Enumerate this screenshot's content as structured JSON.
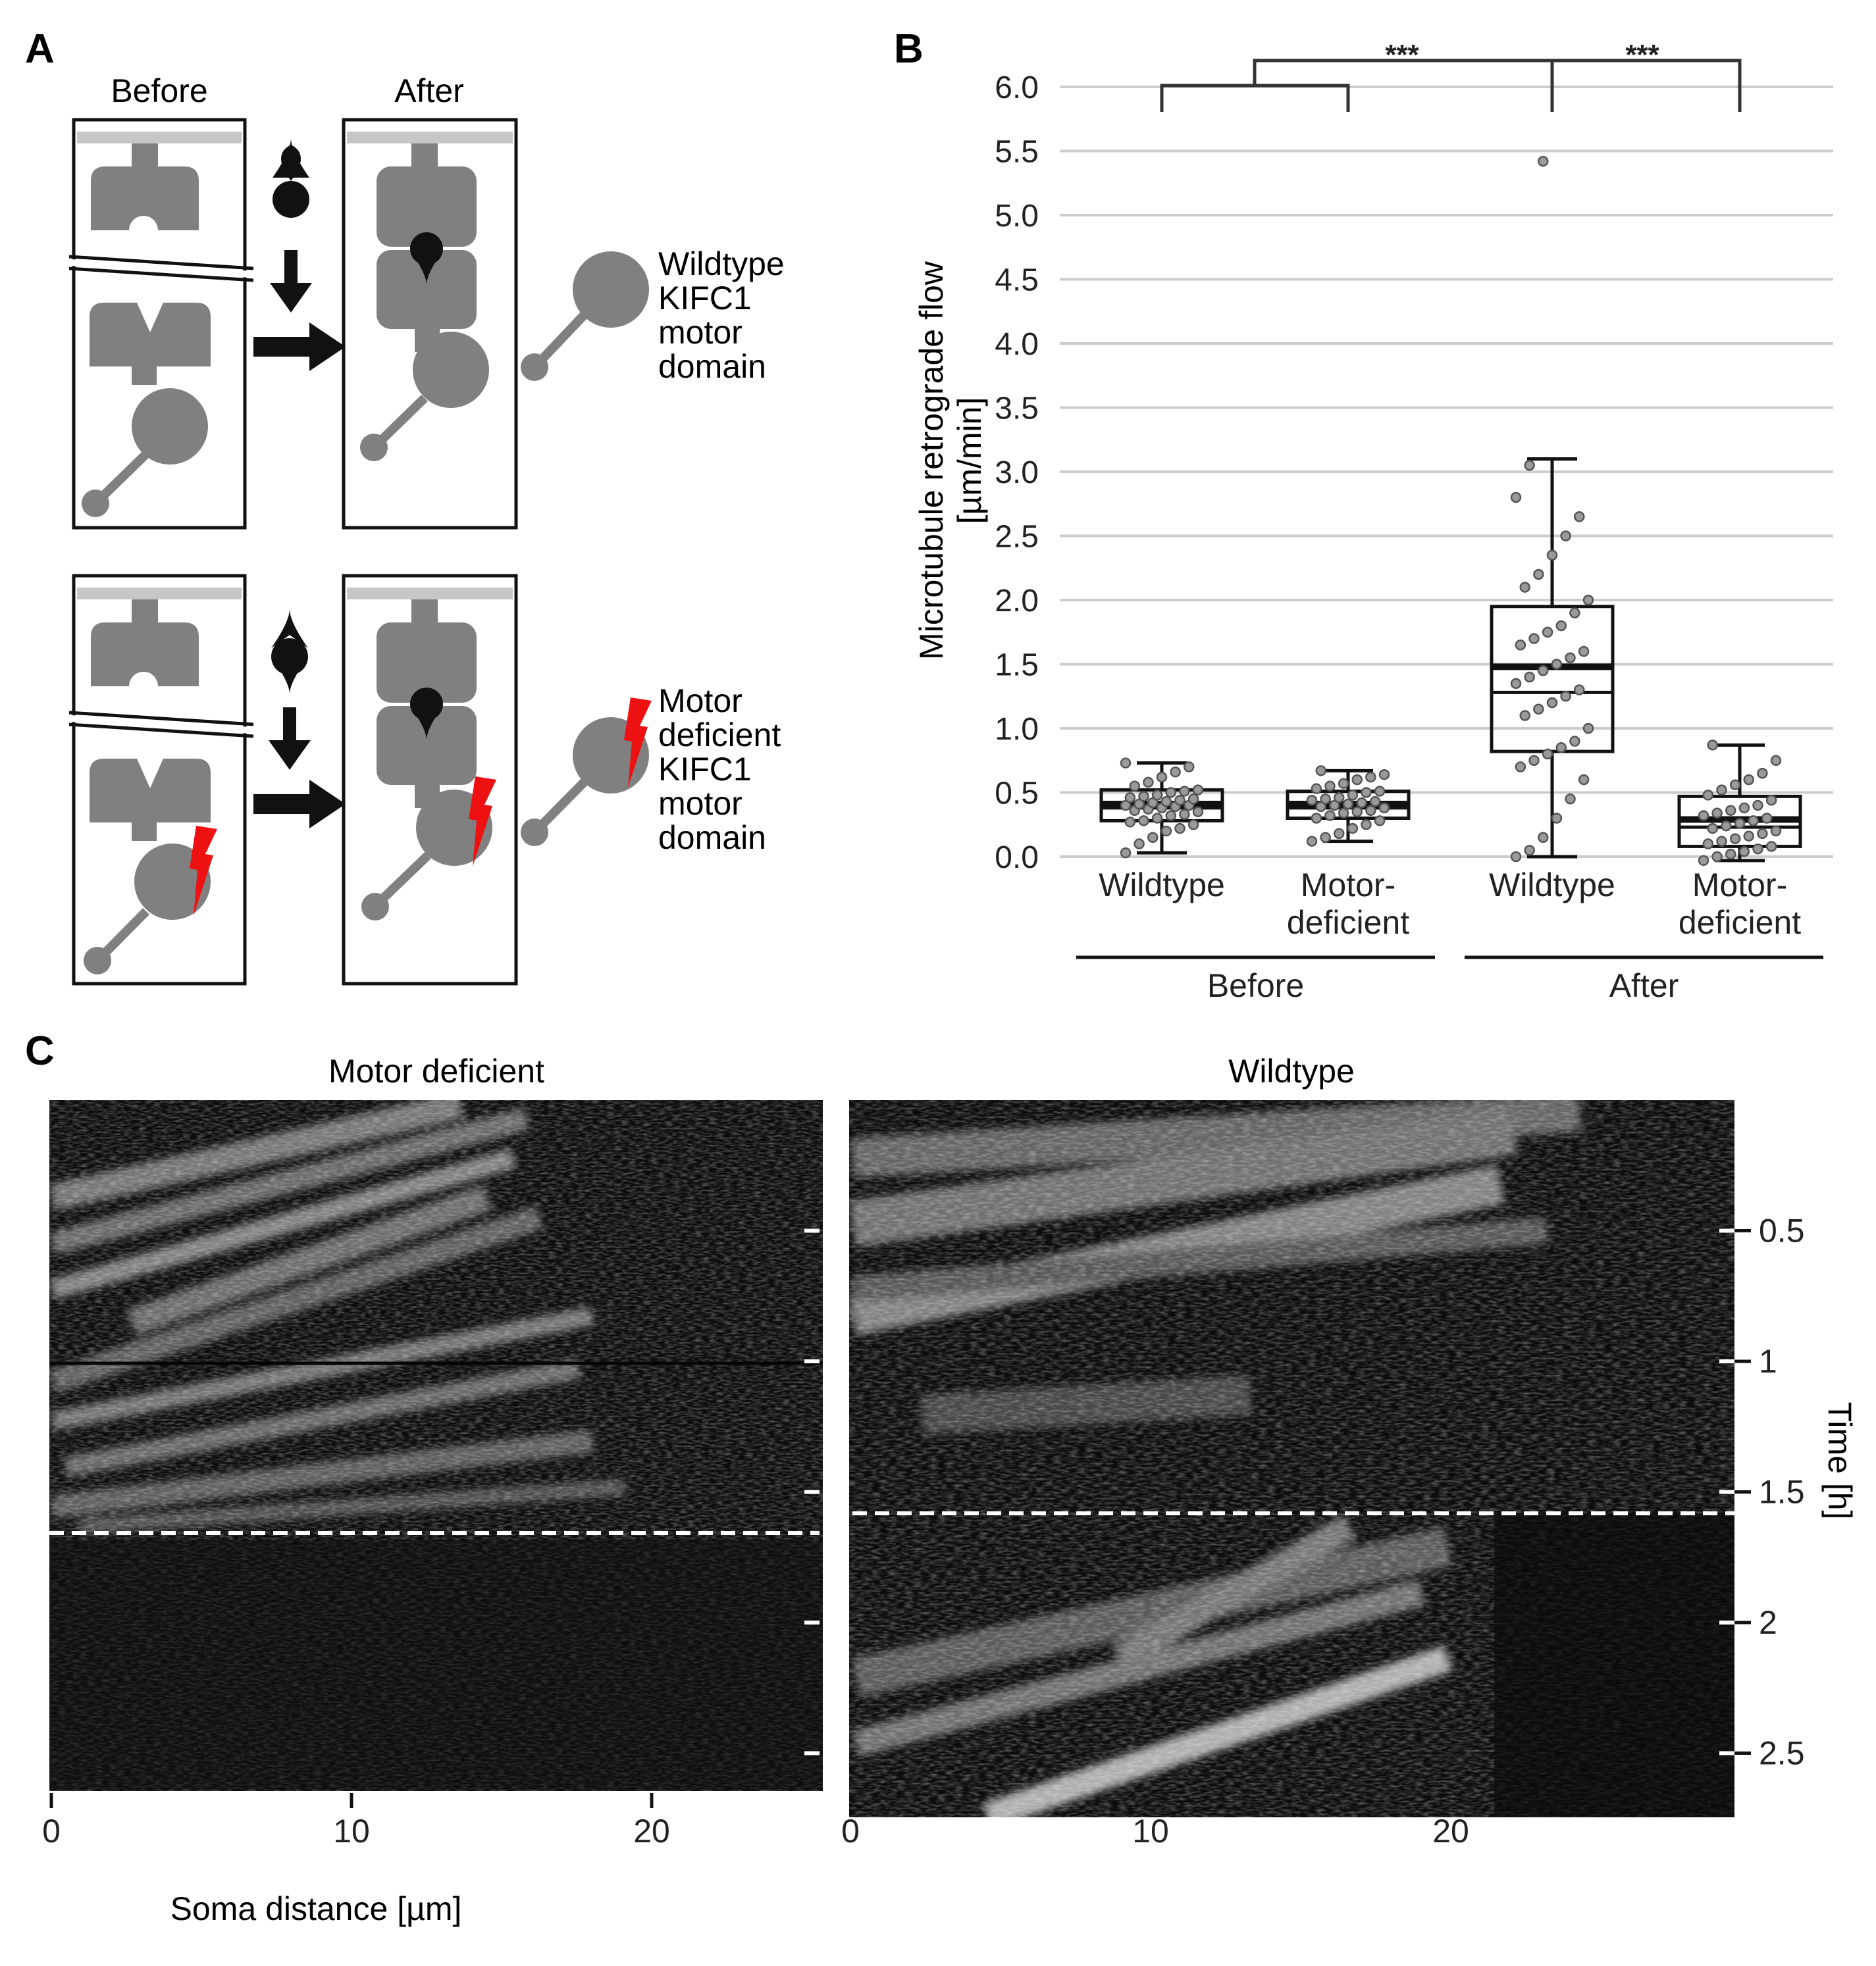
{
  "panels": {
    "A": "A",
    "B": "B",
    "C": "C"
  },
  "panel_a": {
    "col_before": "Before",
    "col_after": "After",
    "row1_label": [
      "Wildtype",
      "KIFC1",
      "motor",
      "domain"
    ],
    "row2_label": [
      "Motor",
      "deficient",
      "KIFC1",
      "motor",
      "domain"
    ]
  },
  "chart_data": [
    {
      "type": "box",
      "ylabel": [
        "Microtubule retrograde flow",
        "[µm/min]"
      ],
      "ylim": [
        0,
        6.0
      ],
      "yticks": [
        "0.0",
        "0.5",
        "1.0",
        "1.5",
        "2.0",
        "2.5",
        "3.0",
        "3.5",
        "4.0",
        "4.5",
        "5.0",
        "5.5",
        "6.0"
      ],
      "grid": true,
      "groups": [
        "Before",
        "After"
      ],
      "categories": [
        {
          "label": [
            "Wildtype"
          ],
          "group": "Before",
          "whisker_low": 0.03,
          "q1": 0.28,
          "median": 0.38,
          "mean": 0.41,
          "q3": 0.52,
          "whisker_high": 0.73,
          "points": [
            0.03,
            0.1,
            0.15,
            0.2,
            0.22,
            0.25,
            0.27,
            0.28,
            0.3,
            0.32,
            0.33,
            0.35,
            0.36,
            0.37,
            0.38,
            0.39,
            0.4,
            0.4,
            0.41,
            0.42,
            0.43,
            0.44,
            0.45,
            0.46,
            0.47,
            0.48,
            0.5,
            0.51,
            0.52,
            0.55,
            0.58,
            0.62,
            0.66,
            0.7,
            0.73
          ]
        },
        {
          "label": [
            "Motor-",
            "deficient"
          ],
          "group": "Before",
          "whisker_low": 0.12,
          "q1": 0.3,
          "median": 0.38,
          "mean": 0.41,
          "q3": 0.51,
          "whisker_high": 0.67,
          "points": [
            0.12,
            0.15,
            0.18,
            0.22,
            0.25,
            0.28,
            0.3,
            0.32,
            0.34,
            0.35,
            0.36,
            0.38,
            0.39,
            0.4,
            0.41,
            0.42,
            0.43,
            0.44,
            0.45,
            0.46,
            0.48,
            0.5,
            0.51,
            0.53,
            0.55,
            0.57,
            0.6,
            0.62,
            0.64,
            0.67
          ]
        },
        {
          "label": [
            "Wildtype"
          ],
          "group": "After",
          "whisker_low": 0.0,
          "q1": 0.82,
          "median": 1.28,
          "mean": 1.48,
          "q3": 1.95,
          "whisker_high": 3.1,
          "points": [
            0.0,
            0.05,
            0.15,
            0.3,
            0.45,
            0.6,
            0.7,
            0.75,
            0.8,
            0.85,
            0.9,
            1.0,
            1.1,
            1.15,
            1.2,
            1.25,
            1.3,
            1.35,
            1.4,
            1.45,
            1.5,
            1.55,
            1.6,
            1.65,
            1.7,
            1.75,
            1.8,
            1.9,
            2.0,
            2.1,
            2.2,
            2.35,
            2.5,
            2.65,
            2.8,
            3.05,
            5.42
          ]
        },
        {
          "label": [
            "Motor-",
            "deficient"
          ],
          "group": "After",
          "whisker_low": -0.03,
          "q1": 0.08,
          "median": 0.23,
          "mean": 0.29,
          "q3": 0.47,
          "whisker_high": 0.87,
          "points": [
            -0.03,
            0.0,
            0.02,
            0.04,
            0.06,
            0.08,
            0.1,
            0.12,
            0.14,
            0.16,
            0.18,
            0.2,
            0.22,
            0.24,
            0.26,
            0.28,
            0.3,
            0.32,
            0.34,
            0.36,
            0.38,
            0.4,
            0.44,
            0.48,
            0.52,
            0.56,
            0.6,
            0.65,
            0.75,
            0.87
          ]
        }
      ],
      "significance": [
        {
          "between": [
            "Before",
            "After:Wildtype"
          ],
          "label": "***"
        },
        {
          "between": [
            "After:Wildtype",
            "After:Motor-deficient"
          ],
          "label": "***"
        }
      ]
    },
    {
      "type": "heatmap",
      "title": "Motor deficient",
      "xlabel": "Soma distance [µm]",
      "xticks": [
        "0",
        "10",
        "20"
      ],
      "xlim": [
        0,
        25.5
      ],
      "ylim_h": [
        0,
        2.63
      ],
      "event_time_h": 1.6
    },
    {
      "type": "heatmap",
      "title": "Wildtype",
      "xticks": [
        "0",
        "10",
        "20"
      ],
      "xlim": [
        0,
        29.5
      ],
      "ylabel": "Time [h]",
      "yticks": [
        "0.5",
        "1",
        "1.5",
        "2",
        "2.5"
      ],
      "ylim_h": [
        0,
        2.85
      ],
      "event_time_h": 1.54
    }
  ]
}
